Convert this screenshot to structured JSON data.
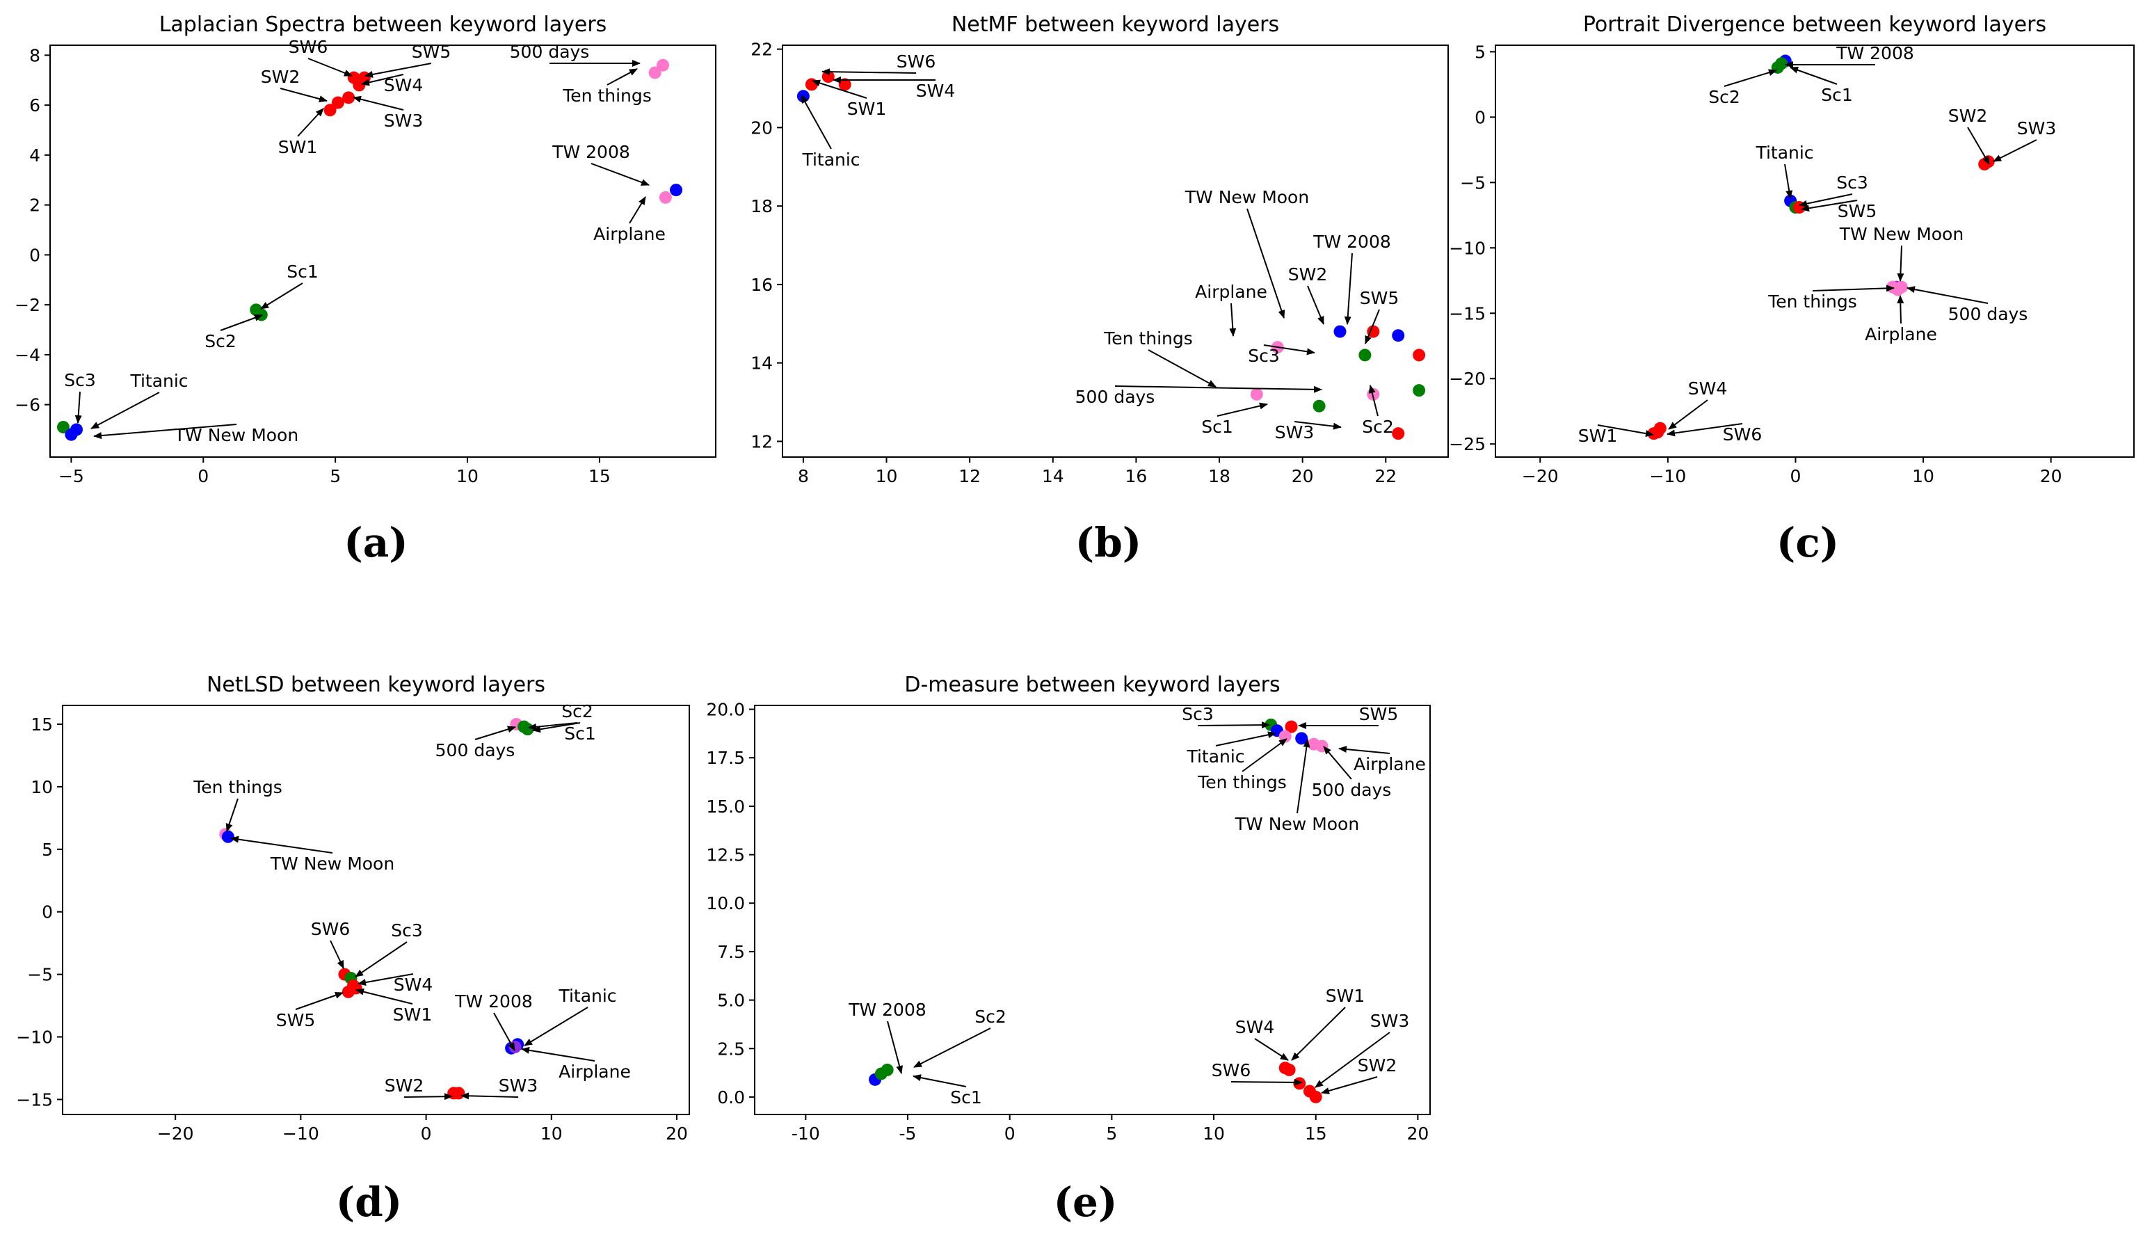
{
  "colors": {
    "red": "#ff0000",
    "blue": "#0000ff",
    "green": "#008000",
    "pink": "#ff77cc",
    "violet": "#8a2be2"
  },
  "chart_data": [
    {
      "panel": "(a)",
      "type": "scatter",
      "title": "Laplacian Spectra between keyword layers",
      "xlim": [
        -5.8,
        19.4
      ],
      "ylim": [
        -8.1,
        8.4
      ],
      "xticks": [
        -5,
        0,
        5,
        10,
        15
      ],
      "yticks": [
        -6,
        -4,
        -2,
        0,
        2,
        4,
        6,
        8
      ],
      "points": [
        {
          "label": "SW1",
          "x": 4.8,
          "y": 5.8,
          "color": "red"
        },
        {
          "label": "SW2",
          "x": 5.1,
          "y": 6.1,
          "color": "red"
        },
        {
          "label": "SW3",
          "x": 5.5,
          "y": 6.3,
          "color": "red"
        },
        {
          "label": "SW4",
          "x": 5.9,
          "y": 6.8,
          "color": "red"
        },
        {
          "label": "SW5",
          "x": 6.1,
          "y": 7.1,
          "color": "red"
        },
        {
          "label": "SW6",
          "x": 5.7,
          "y": 7.1,
          "color": "red"
        },
        {
          "label": "500 days",
          "x": 17.4,
          "y": 7.6,
          "color": "pink"
        },
        {
          "label": "Ten things",
          "x": 17.1,
          "y": 7.3,
          "color": "pink"
        },
        {
          "label": "TW 2008",
          "x": 17.9,
          "y": 2.6,
          "color": "blue"
        },
        {
          "label": "Airplane",
          "x": 17.5,
          "y": 2.3,
          "color": "pink"
        },
        {
          "label": "Sc1",
          "x": 2.2,
          "y": -2.4,
          "color": "green"
        },
        {
          "label": "Sc2",
          "x": 2.0,
          "y": -2.2,
          "color": "green"
        },
        {
          "label": "Sc3",
          "x": -5.3,
          "y": -6.9,
          "color": "green"
        },
        {
          "label": "Titanic",
          "x": -4.8,
          "y": -7.0,
          "color": "blue"
        },
        {
          "label": "TW New Moon",
          "x": -5.0,
          "y": -7.2,
          "color": "blue"
        }
      ]
    },
    {
      "panel": "(b)",
      "type": "scatter",
      "title": "NetMF between keyword layers",
      "xlim": [
        7.5,
        23.5
      ],
      "ylim": [
        11.6,
        22.1
      ],
      "xticks": [
        8,
        10,
        12,
        14,
        16,
        18,
        20,
        22
      ],
      "yticks": [
        12,
        14,
        16,
        18,
        20,
        22
      ],
      "points": [
        {
          "label": "SW6",
          "x": 8.6,
          "y": 21.3,
          "color": "red"
        },
        {
          "label": "SW1",
          "x": 8.2,
          "y": 21.1,
          "color": "red"
        },
        {
          "label": "SW4",
          "x": 9.0,
          "y": 21.1,
          "color": "red"
        },
        {
          "label": "Titanic",
          "x": 8.0,
          "y": 20.8,
          "color": "blue"
        },
        {
          "label": "TW New Moon",
          "x": 20.9,
          "y": 14.8,
          "color": "blue"
        },
        {
          "label": "SW2",
          "x": 21.7,
          "y": 14.8,
          "color": "red"
        },
        {
          "label": "TW 2008",
          "x": 22.3,
          "y": 14.7,
          "color": "blue"
        },
        {
          "label": "SW5",
          "x": 22.8,
          "y": 14.2,
          "color": "red"
        },
        {
          "label": "Airplane",
          "x": 19.4,
          "y": 14.4,
          "color": "pink"
        },
        {
          "label": "Sc3",
          "x": 21.5,
          "y": 14.2,
          "color": "green"
        },
        {
          "label": "Ten things",
          "x": 18.9,
          "y": 13.2,
          "color": "pink"
        },
        {
          "label": "500 days",
          "x": 21.7,
          "y": 13.2,
          "color": "pink"
        },
        {
          "label": "Sc2",
          "x": 22.8,
          "y": 13.3,
          "color": "green"
        },
        {
          "label": "Sc1",
          "x": 20.4,
          "y": 12.9,
          "color": "green"
        },
        {
          "label": "SW3",
          "x": 22.3,
          "y": 12.2,
          "color": "red"
        }
      ]
    },
    {
      "panel": "(c)",
      "type": "scatter",
      "title": "Portrait Divergence between keyword layers",
      "xlim": [
        -23.5,
        26.5
      ],
      "ylim": [
        -26.0,
        5.5
      ],
      "xticks": [
        -20,
        -10,
        0,
        10,
        20
      ],
      "yticks": [
        -25,
        -20,
        -15,
        -10,
        -5,
        0,
        5
      ],
      "points": [
        {
          "label": "TW 2008",
          "x": -0.8,
          "y": 4.3,
          "color": "blue"
        },
        {
          "label": "Sc1",
          "x": -1.1,
          "y": 4.1,
          "color": "green"
        },
        {
          "label": "Sc2",
          "x": -1.4,
          "y": 3.8,
          "color": "green"
        },
        {
          "label": "SW2",
          "x": 14.8,
          "y": -3.6,
          "color": "red"
        },
        {
          "label": "SW3",
          "x": 15.1,
          "y": -3.4,
          "color": "red"
        },
        {
          "label": "Titanic",
          "x": -0.4,
          "y": -6.4,
          "color": "blue"
        },
        {
          "label": "Sc3",
          "x": 0.0,
          "y": -6.9,
          "color": "green"
        },
        {
          "label": "SW5",
          "x": 0.3,
          "y": -6.9,
          "color": "red"
        },
        {
          "label": "TW New Moon",
          "x": 7.9,
          "y": -13.0,
          "color": "violet"
        },
        {
          "label": "Ten things",
          "x": 7.6,
          "y": -13.0,
          "color": "pink"
        },
        {
          "label": "Airplane",
          "x": 8.0,
          "y": -13.2,
          "color": "pink"
        },
        {
          "label": "500 days",
          "x": 8.3,
          "y": -13.0,
          "color": "pink"
        },
        {
          "label": "SW4",
          "x": -10.6,
          "y": -23.8,
          "color": "red"
        },
        {
          "label": "SW1",
          "x": -11.1,
          "y": -24.2,
          "color": "red"
        },
        {
          "label": "SW6",
          "x": -10.8,
          "y": -24.1,
          "color": "red"
        }
      ]
    },
    {
      "panel": "(d)",
      "type": "scatter",
      "title": "NetLSD between keyword layers",
      "xlim": [
        -29.0,
        21.0
      ],
      "ylim": [
        -16.2,
        16.5
      ],
      "xticks": [
        -20,
        -10,
        0,
        10,
        20
      ],
      "yticks": [
        -15,
        -10,
        -5,
        0,
        5,
        10,
        15
      ],
      "points": [
        {
          "label": "500 days",
          "x": 7.2,
          "y": 15.0,
          "color": "pink"
        },
        {
          "label": "Sc2",
          "x": 7.8,
          "y": 14.8,
          "color": "green"
        },
        {
          "label": "Sc1",
          "x": 8.1,
          "y": 14.6,
          "color": "green"
        },
        {
          "label": "Ten things",
          "x": -16.0,
          "y": 6.2,
          "color": "pink"
        },
        {
          "label": "TW New Moon",
          "x": -15.8,
          "y": 6.0,
          "color": "blue"
        },
        {
          "label": "SW6",
          "x": -6.5,
          "y": -5.0,
          "color": "red"
        },
        {
          "label": "Sc3",
          "x": -6.0,
          "y": -5.3,
          "color": "green"
        },
        {
          "label": "SW4",
          "x": -5.8,
          "y": -5.9,
          "color": "red"
        },
        {
          "label": "SW5",
          "x": -6.2,
          "y": -6.4,
          "color": "red"
        },
        {
          "label": "SW1",
          "x": -5.6,
          "y": -6.1,
          "color": "red"
        },
        {
          "label": "TW 2008",
          "x": 6.8,
          "y": -10.9,
          "color": "blue"
        },
        {
          "label": "Titanic",
          "x": 7.3,
          "y": -10.6,
          "color": "blue"
        },
        {
          "label": "Airplane",
          "x": 7.1,
          "y": -10.8,
          "color": "violet"
        },
        {
          "label": "SW2",
          "x": 2.2,
          "y": -14.5,
          "color": "red"
        },
        {
          "label": "SW3",
          "x": 2.6,
          "y": -14.5,
          "color": "red"
        }
      ]
    },
    {
      "panel": "(e)",
      "type": "scatter",
      "title": "D-measure between keyword layers",
      "xlim": [
        -12.5,
        20.6
      ],
      "ylim": [
        -0.9,
        20.2
      ],
      "xticks": [
        -10,
        -5,
        0,
        5,
        10,
        15,
        20
      ],
      "yticks": [
        0.0,
        2.5,
        5.0,
        7.5,
        10.0,
        12.5,
        15.0,
        17.5,
        20.0
      ],
      "points": [
        {
          "label": "Sc3",
          "x": 12.8,
          "y": 19.2,
          "color": "green"
        },
        {
          "label": "SW5",
          "x": 13.8,
          "y": 19.1,
          "color": "red"
        },
        {
          "label": "Titanic",
          "x": 13.1,
          "y": 18.9,
          "color": "blue"
        },
        {
          "label": "Ten things",
          "x": 13.5,
          "y": 18.6,
          "color": "pink"
        },
        {
          "label": "TW New Moon",
          "x": 14.3,
          "y": 18.5,
          "color": "blue"
        },
        {
          "label": "500 days",
          "x": 14.9,
          "y": 18.2,
          "color": "pink"
        },
        {
          "label": "Airplane",
          "x": 15.3,
          "y": 18.1,
          "color": "pink"
        },
        {
          "label": "TW 2008",
          "x": -6.6,
          "y": 0.9,
          "color": "blue"
        },
        {
          "label": "Sc2",
          "x": -6.0,
          "y": 1.4,
          "color": "green"
        },
        {
          "label": "Sc1",
          "x": -6.3,
          "y": 1.2,
          "color": "green"
        },
        {
          "label": "SW4",
          "x": 13.5,
          "y": 1.5,
          "color": "red"
        },
        {
          "label": "SW1",
          "x": 13.7,
          "y": 1.4,
          "color": "red"
        },
        {
          "label": "SW6",
          "x": 14.2,
          "y": 0.7,
          "color": "red"
        },
        {
          "label": "SW3",
          "x": 14.7,
          "y": 0.3,
          "color": "red"
        },
        {
          "label": "SW2",
          "x": 15.0,
          "y": 0.0,
          "color": "red"
        }
      ]
    }
  ]
}
